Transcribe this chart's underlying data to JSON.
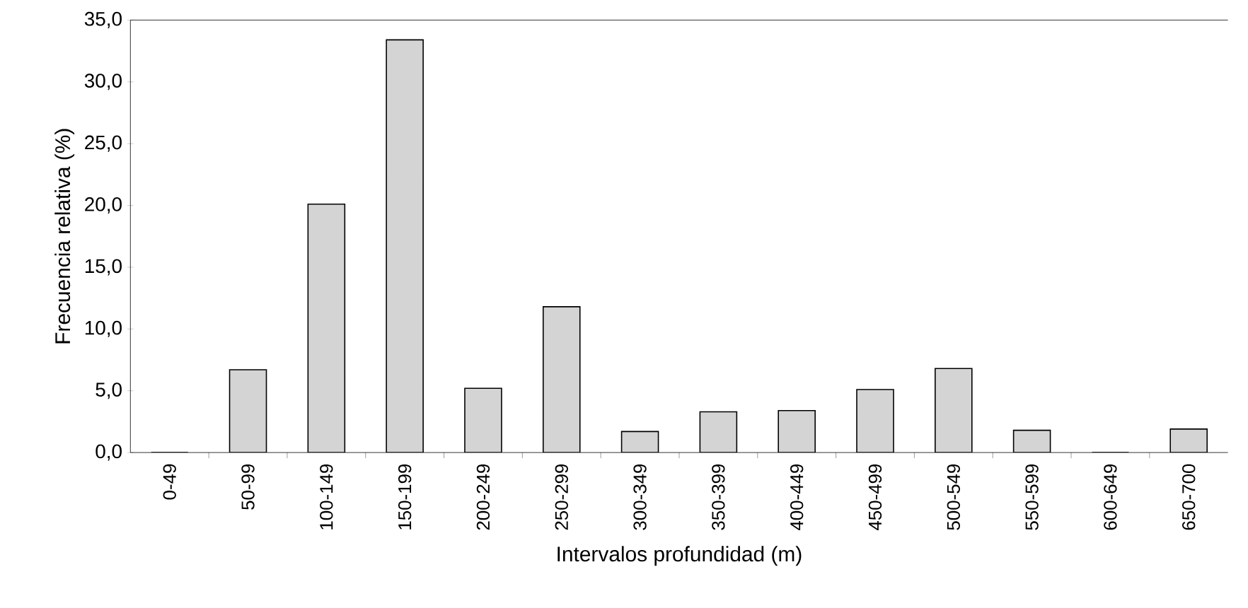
{
  "chart_data": {
    "type": "bar",
    "xlabel": "Intervalos profundidad (m)",
    "ylabel": "Frecuencia relativa (%)",
    "categories": [
      "0-49",
      "50-99",
      "100-149",
      "150-199",
      "200-249",
      "250-299",
      "300-349",
      "350-399",
      "400-449",
      "450-499",
      "500-549",
      "550-599",
      "600-649",
      "650-700"
    ],
    "values": [
      0,
      6.7,
      20.1,
      33.4,
      5.2,
      11.8,
      1.7,
      3.3,
      3.4,
      5.1,
      6.8,
      1.8,
      0,
      1.9
    ],
    "color": "#d4d4d4",
    "ylim": [
      0,
      35
    ],
    "yticks": [
      {
        "value": 0,
        "label": "0,0"
      },
      {
        "value": 5,
        "label": "5,0"
      },
      {
        "value": 10,
        "label": "10,0"
      },
      {
        "value": 15,
        "label": "15,0"
      },
      {
        "value": 20,
        "label": "20,0"
      },
      {
        "value": 25,
        "label": "25,0"
      },
      {
        "value": 30,
        "label": "30,0"
      },
      {
        "value": 35,
        "label": "35,0"
      }
    ],
    "grid": false
  }
}
